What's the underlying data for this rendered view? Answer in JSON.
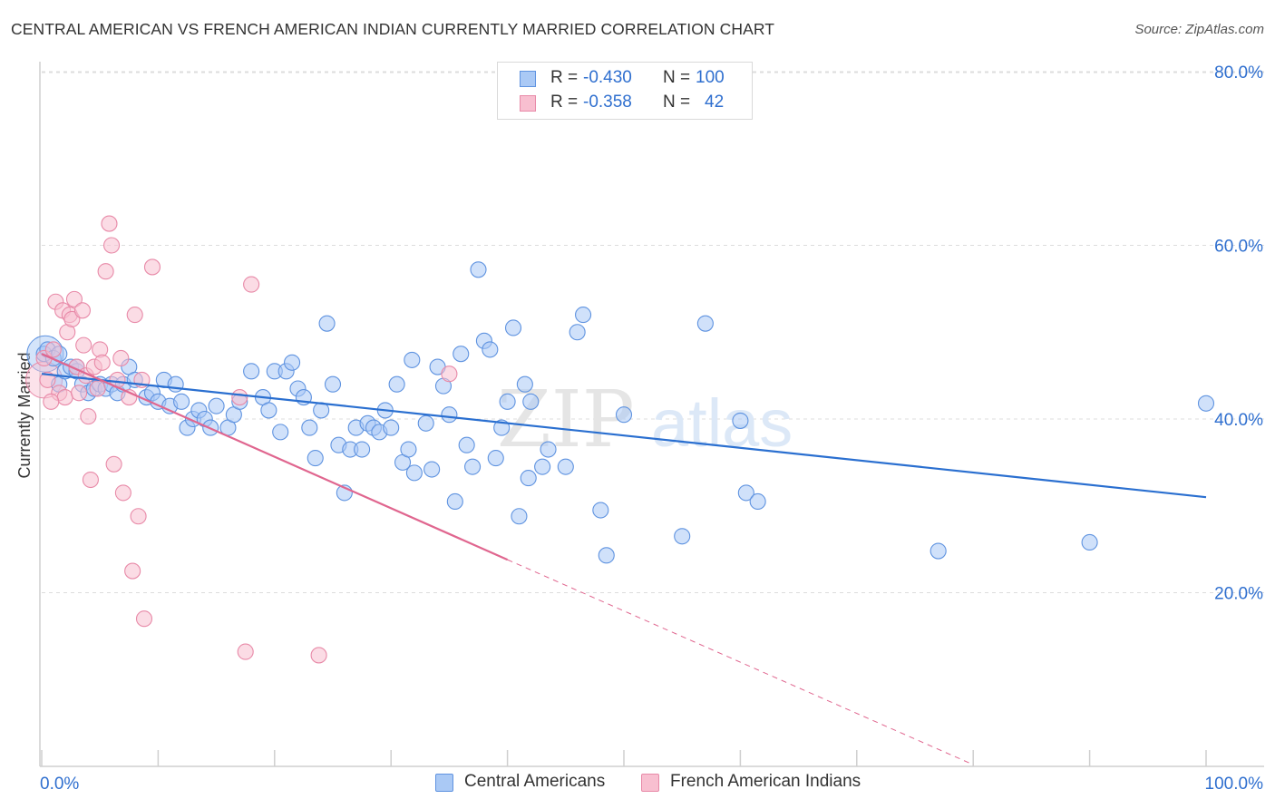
{
  "header": {
    "title": "CENTRAL AMERICAN VS FRENCH AMERICAN INDIAN CURRENTLY MARRIED CORRELATION CHART",
    "source": "Source: ZipAtlas.com"
  },
  "legend": {
    "rows": [
      {
        "r_label": "R = ",
        "r_value": "-0.430",
        "n_label": "N = ",
        "n_value": "100"
      },
      {
        "r_label": "R = ",
        "r_value": "-0.358",
        "n_label": "N = ",
        "n_value": "42"
      }
    ]
  },
  "colors": {
    "blue_fill": "#aac9f5",
    "blue_stroke": "#5f93e0",
    "blue_line": "#2a6fd0",
    "pink_fill": "#f8bfd0",
    "pink_stroke": "#e88aa8",
    "pink_line": "#e0668f",
    "axis_text": "#2f6fcf",
    "grid": "#dddddd"
  },
  "chart_data": {
    "type": "scatter",
    "title": "CENTRAL AMERICAN VS FRENCH AMERICAN INDIAN CURRENTLY MARRIED CORRELATION CHART",
    "xlabel": "",
    "ylabel": "Currently Married",
    "xlim": [
      0,
      100
    ],
    "ylim": [
      0,
      82
    ],
    "x_tick_labels": [
      "0.0%",
      "100.0%"
    ],
    "y_ticks": [
      20,
      40,
      60,
      80
    ],
    "y_tick_labels": [
      "20.0%",
      "40.0%",
      "60.0%",
      "80.0%"
    ],
    "grid": true,
    "legend_position": "top-center",
    "watermark": "ZIPatlas",
    "series": [
      {
        "name": "Central Americans",
        "color": "#aac9f5",
        "trend": {
          "x": [
            0,
            100
          ],
          "y": [
            45.2,
            31.0
          ],
          "style": "solid"
        },
        "points": [
          [
            0.2,
            47.5
          ],
          [
            0.5,
            48
          ],
          [
            1.0,
            47
          ],
          [
            1.5,
            44
          ],
          [
            2,
            45.5
          ],
          [
            2.5,
            46
          ],
          [
            3,
            45.5
          ],
          [
            3.5,
            44
          ],
          [
            4,
            43
          ],
          [
            4.5,
            43.5
          ],
          [
            5,
            44
          ],
          [
            5.5,
            43.5
          ],
          [
            6,
            44
          ],
          [
            6.5,
            43
          ],
          [
            7,
            44
          ],
          [
            7.5,
            46
          ],
          [
            8,
            44.5
          ],
          [
            9,
            42.5
          ],
          [
            9.5,
            43
          ],
          [
            10,
            42
          ],
          [
            10.5,
            44.5
          ],
          [
            11,
            41.5
          ],
          [
            11.5,
            44
          ],
          [
            12,
            42
          ],
          [
            12.5,
            39
          ],
          [
            13,
            40
          ],
          [
            13.5,
            41
          ],
          [
            14,
            40
          ],
          [
            14.5,
            39
          ],
          [
            15,
            41.5
          ],
          [
            16,
            39
          ],
          [
            16.5,
            40.5
          ],
          [
            17,
            42
          ],
          [
            18,
            45.5
          ],
          [
            19,
            42.5
          ],
          [
            19.5,
            41
          ],
          [
            20,
            45.5
          ],
          [
            20.5,
            38.5
          ],
          [
            21,
            45.5
          ],
          [
            21.5,
            46.5
          ],
          [
            22,
            43.5
          ],
          [
            22.5,
            42.5
          ],
          [
            23,
            39
          ],
          [
            23.5,
            35.5
          ],
          [
            24,
            41
          ],
          [
            24.5,
            51
          ],
          [
            25,
            44
          ],
          [
            25.5,
            37
          ],
          [
            26,
            31.5
          ],
          [
            26.5,
            36.5
          ],
          [
            27,
            39
          ],
          [
            27.5,
            36.5
          ],
          [
            28,
            39.5
          ],
          [
            28.5,
            39
          ],
          [
            29,
            38.5
          ],
          [
            29.5,
            41
          ],
          [
            30,
            39
          ],
          [
            30.5,
            44
          ],
          [
            31,
            35
          ],
          [
            31.5,
            36.5
          ],
          [
            31.8,
            46.8
          ],
          [
            32,
            33.8
          ],
          [
            33,
            39.5
          ],
          [
            33.5,
            34.2
          ],
          [
            34,
            46
          ],
          [
            34.5,
            43.8
          ],
          [
            35,
            40.5
          ],
          [
            35.5,
            30.5
          ],
          [
            36,
            47.5
          ],
          [
            36.5,
            37
          ],
          [
            37,
            34.5
          ],
          [
            37.5,
            57.2
          ],
          [
            38,
            49
          ],
          [
            38.5,
            48
          ],
          [
            39,
            35.5
          ],
          [
            39.5,
            39
          ],
          [
            40,
            42
          ],
          [
            40.5,
            50.5
          ],
          [
            41,
            28.8
          ],
          [
            41.5,
            44
          ],
          [
            41.8,
            33.2
          ],
          [
            42,
            42
          ],
          [
            43,
            34.5
          ],
          [
            43.5,
            36.5
          ],
          [
            45,
            34.5
          ],
          [
            46,
            50
          ],
          [
            46.5,
            52
          ],
          [
            48,
            29.5
          ],
          [
            48.5,
            24.3
          ],
          [
            50,
            40.5
          ],
          [
            55,
            26.5
          ],
          [
            57,
            51
          ],
          [
            60,
            39.8
          ],
          [
            60.5,
            31.5
          ],
          [
            61.5,
            30.5
          ],
          [
            77,
            24.8
          ],
          [
            90,
            25.8
          ],
          [
            100,
            41.8
          ],
          [
            1.5,
            47.5
          ],
          [
            3,
            46
          ]
        ]
      },
      {
        "name": "French American Indians",
        "color": "#f8bfd0",
        "trend": {
          "x": [
            0,
            40
          ],
          "y": [
            47.5,
            23.8
          ],
          "style": "solid",
          "extension_x": [
            40,
            80
          ],
          "extension_y": [
            23.8,
            0.2
          ],
          "extension_style": "dashed"
        },
        "points": [
          [
            0.2,
            47
          ],
          [
            0.5,
            44.5
          ],
          [
            1,
            48
          ],
          [
            1.2,
            53.5
          ],
          [
            1.5,
            43
          ],
          [
            1.8,
            52.5
          ],
          [
            2,
            42.5
          ],
          [
            2.2,
            50
          ],
          [
            2.4,
            52
          ],
          [
            2.6,
            51.5
          ],
          [
            2.8,
            53.8
          ],
          [
            3,
            46
          ],
          [
            3.2,
            43
          ],
          [
            3.5,
            52.5
          ],
          [
            3.8,
            45
          ],
          [
            4,
            40.3
          ],
          [
            4.2,
            33
          ],
          [
            4.5,
            46
          ],
          [
            4.8,
            43.5
          ],
          [
            5,
            48
          ],
          [
            5.2,
            46.5
          ],
          [
            5.5,
            57
          ],
          [
            5.8,
            62.5
          ],
          [
            6,
            60
          ],
          [
            6.2,
            34.8
          ],
          [
            6.5,
            44.5
          ],
          [
            6.8,
            47
          ],
          [
            7,
            31.5
          ],
          [
            7.5,
            42.5
          ],
          [
            7.8,
            22.5
          ],
          [
            8,
            52
          ],
          [
            8.3,
            28.8
          ],
          [
            8.6,
            44.5
          ],
          [
            8.8,
            17
          ],
          [
            9.5,
            57.5
          ],
          [
            17,
            42.5
          ],
          [
            17.5,
            13.2
          ],
          [
            18,
            55.5
          ],
          [
            23.8,
            12.8
          ],
          [
            35,
            45.2
          ],
          [
            0.8,
            42
          ],
          [
            3.6,
            48.5
          ]
        ]
      }
    ]
  },
  "bottom_legend": {
    "items": [
      {
        "label": "Central Americans"
      },
      {
        "label": "French American Indians"
      }
    ]
  }
}
